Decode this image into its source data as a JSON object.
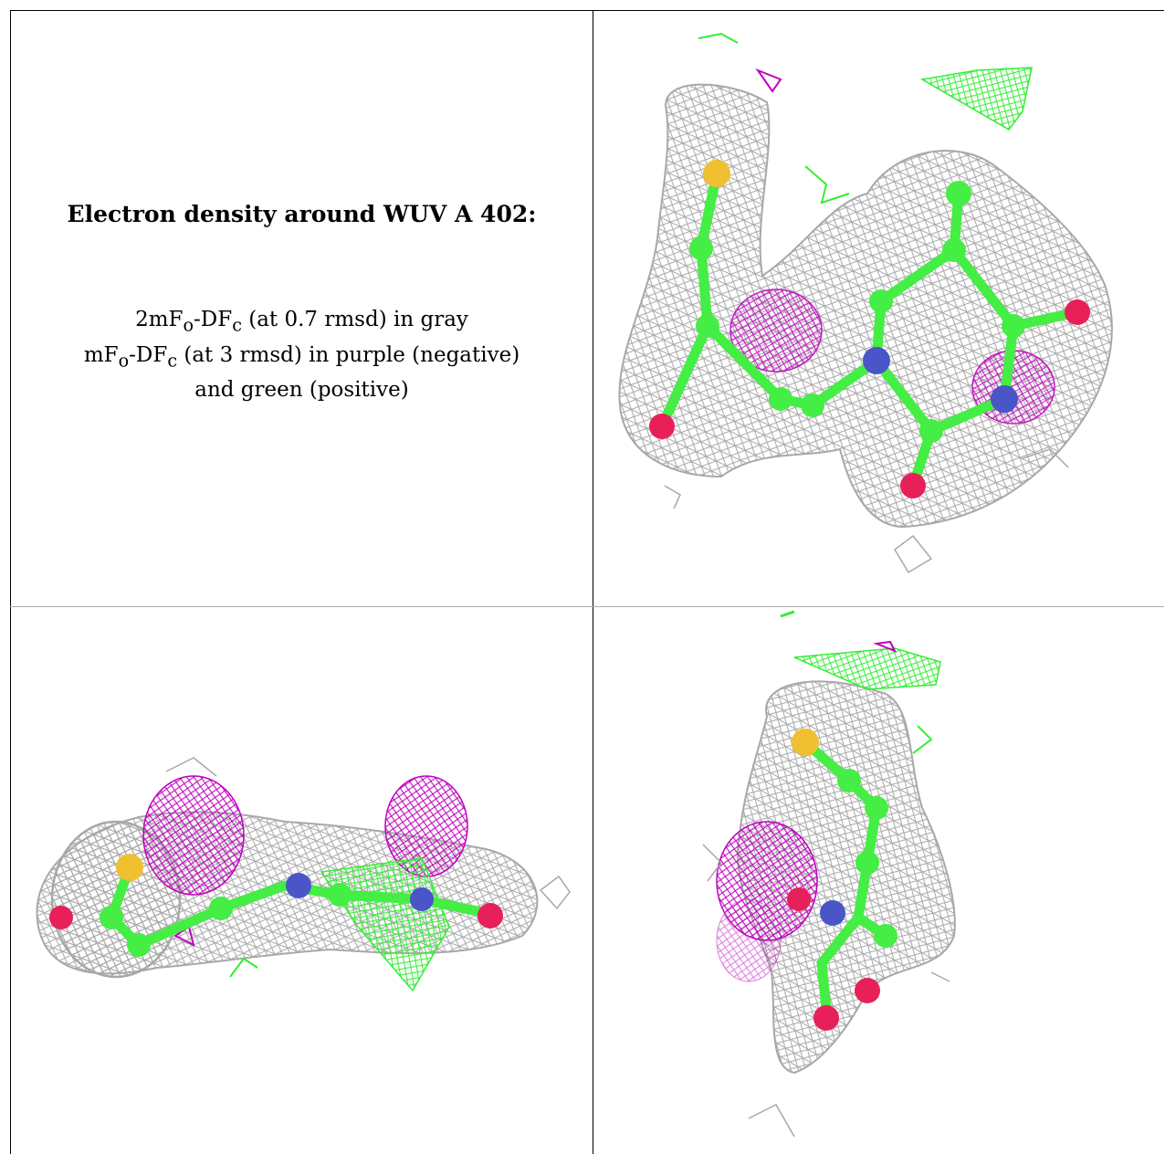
{
  "panel_text": {
    "title": "Electron density around WUV A 402:",
    "line1": "2mFo-DFc (at 0.7 rmsd) in gray",
    "line2": "mFo-DFc (at 3 rmsd) in purple (negative)",
    "line3": "and green (positive)"
  },
  "colors": {
    "gray_map": "#a8a8a8",
    "negative_map": "#c000c0",
    "positive_map": "#33ee33",
    "carbon": "#44ee44",
    "oxygen": "#e8205a",
    "nitrogen": "#4a55c8",
    "sulfur": "#f0c030"
  },
  "views": [
    {
      "name": "top-right",
      "icon": "density-view-1"
    },
    {
      "name": "bottom-left",
      "icon": "density-view-2"
    },
    {
      "name": "bottom-right",
      "icon": "density-view-3"
    }
  ]
}
